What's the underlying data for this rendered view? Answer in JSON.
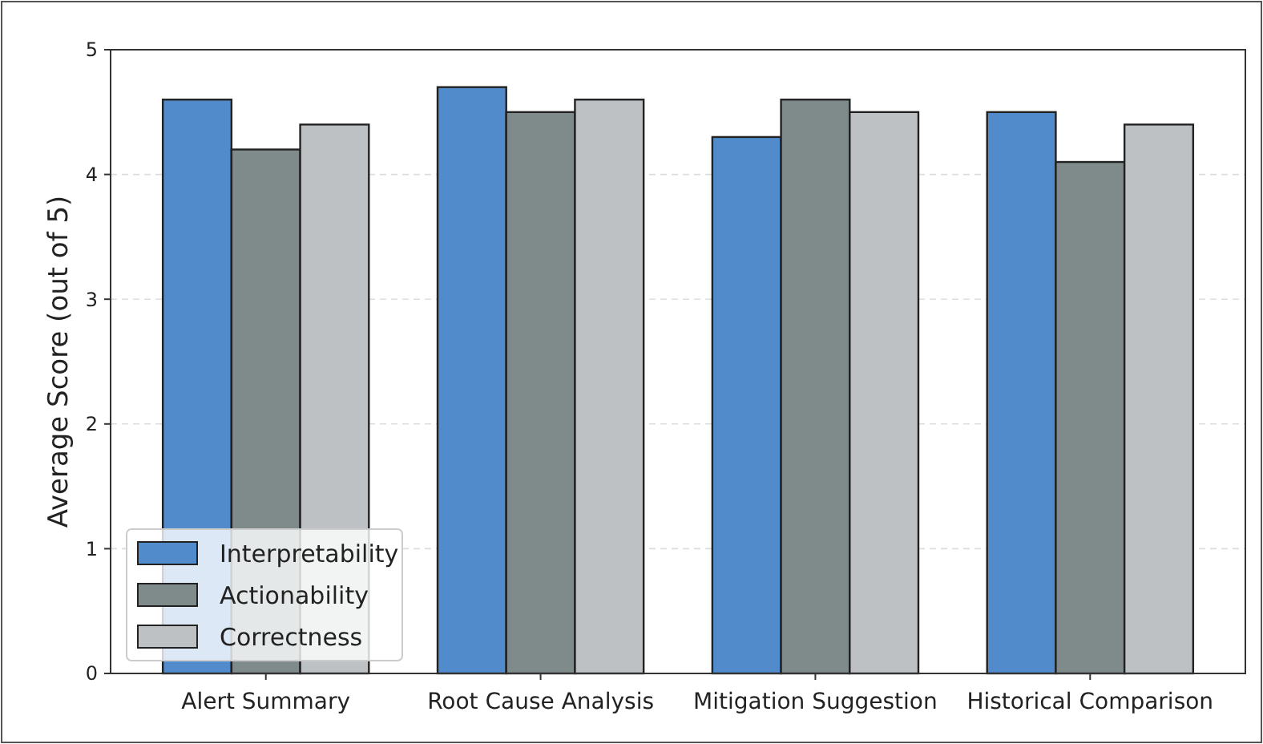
{
  "chart_data": {
    "type": "bar",
    "ylabel": "Average Score (out of 5)",
    "categories": [
      "Alert Summary",
      "Root Cause Analysis",
      "Mitigation Suggestion",
      "Historical Comparison"
    ],
    "series": [
      {
        "name": "Interpretability",
        "color": "#528bcb",
        "values": [
          4.6,
          4.7,
          4.3,
          4.5
        ]
      },
      {
        "name": "Actionability",
        "color": "#7f8b8b",
        "values": [
          4.2,
          4.5,
          4.6,
          4.1
        ]
      },
      {
        "name": "Correctness",
        "color": "#bdc1c4",
        "values": [
          4.4,
          4.6,
          4.5,
          4.4
        ]
      }
    ],
    "ylim": [
      0,
      5
    ],
    "yticks": [
      0,
      1,
      2,
      3,
      4,
      5
    ],
    "grid": "y",
    "legend": "bottom left"
  }
}
